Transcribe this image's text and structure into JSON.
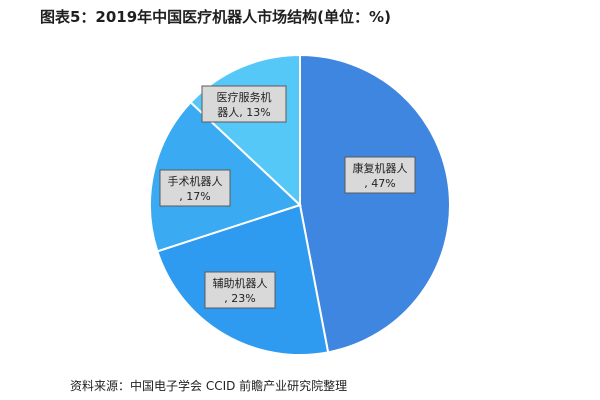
{
  "title": "图表5：2019年中国医疗机器人市场结构(单位：%)",
  "source": "资料来源：中国电子学会 CCID 前瞻产业研究院整理",
  "chart_data": {
    "type": "pie",
    "title": "图表5：2019年中国医疗机器人市场结构(单位：%)",
    "slices": [
      {
        "label": "康复机器人,",
        "value": 47,
        "value_label": "47%",
        "color": "#3f86e0"
      },
      {
        "label": "辅助机器人,",
        "value": 23,
        "value_label": "23%",
        "color": "#2f9bf0"
      },
      {
        "label": "手术机器人,",
        "value": 17,
        "value_label": "17%",
        "color": "#3aaaf2"
      },
      {
        "label": "医疗服务机器人,",
        "value": 13,
        "value_label": "13%",
        "color": "#56c8f7"
      }
    ],
    "start": "12 o'clock",
    "direction": "clockwise",
    "legend": "none",
    "data_labels": "inside slices"
  }
}
